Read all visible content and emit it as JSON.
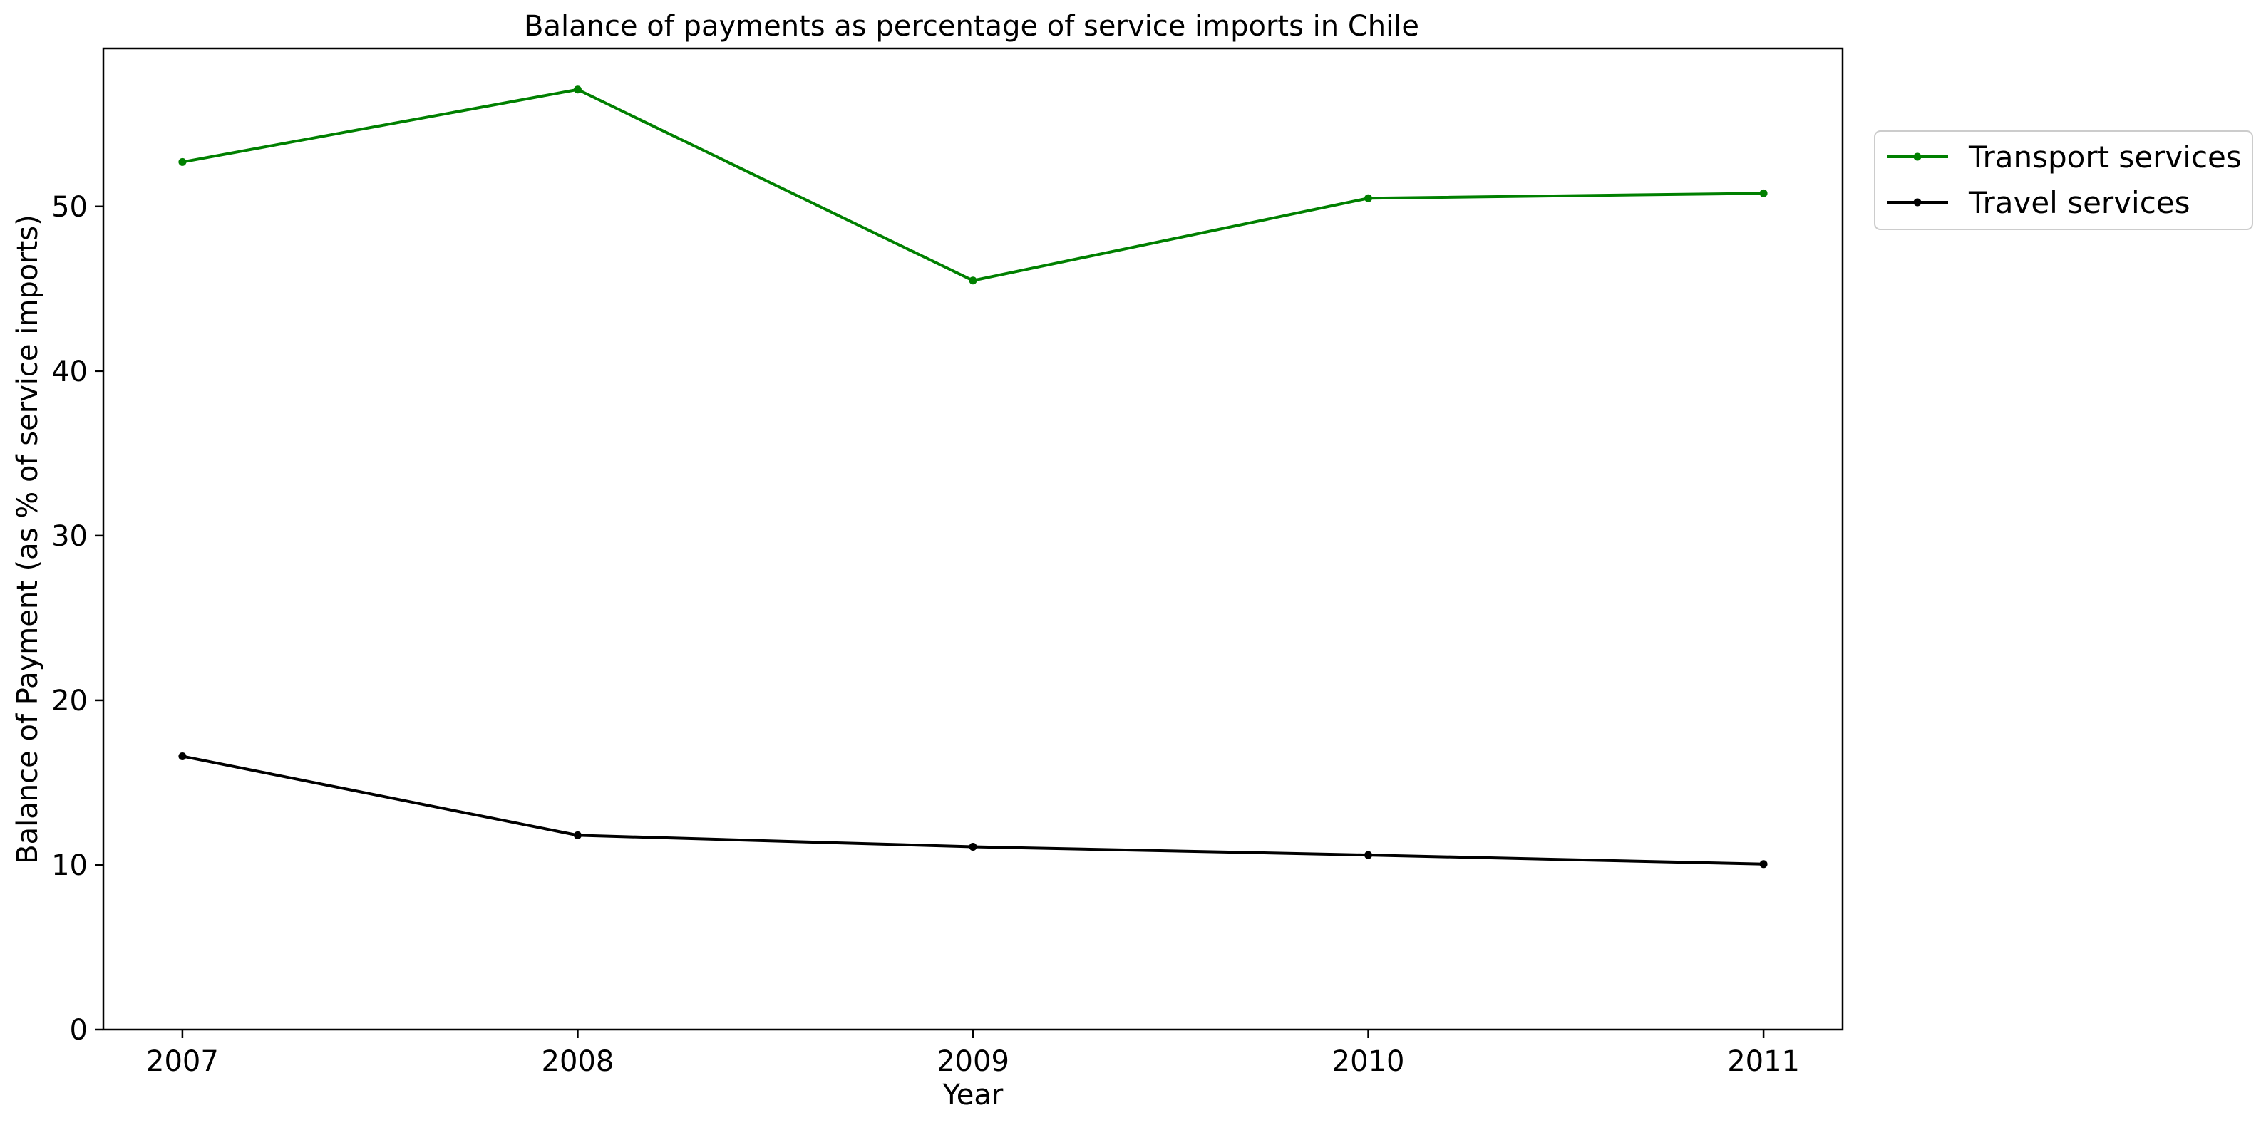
{
  "chart_data": {
    "type": "line",
    "title": "Balance of payments as percentage of service imports in Chile",
    "xlabel": "Year",
    "ylabel": "Balance of Payment (as % of service imports)",
    "x": [
      "2007",
      "2008",
      "2009",
      "2010",
      "2011"
    ],
    "xlim": [
      2006.8,
      2011.2
    ],
    "ylim": [
      0,
      59.6
    ],
    "yticks": [
      0,
      10,
      20,
      30,
      40,
      50
    ],
    "grid": false,
    "legend_position": "outside top-right",
    "series": [
      {
        "name": "Transport services",
        "color": "#008000",
        "values": [
          52.7,
          57.1,
          45.5,
          50.5,
          50.8
        ]
      },
      {
        "name": "Travel services",
        "color": "#000000",
        "values": [
          16.6,
          11.8,
          11.1,
          10.6,
          10.05
        ]
      }
    ]
  }
}
